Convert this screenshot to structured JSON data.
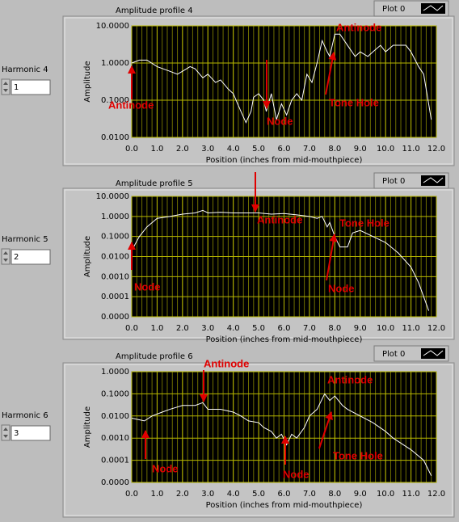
{
  "chart_data": [
    {
      "type": "line",
      "title": "Amplitude profile 4",
      "xlabel": "Position (inches from mid-mouthpiece)",
      "ylabel": "Amplitude",
      "log_y": true,
      "grid": true,
      "x": [
        0,
        0.3,
        0.6,
        1.0,
        1.5,
        1.8,
        2.0,
        2.3,
        2.5,
        2.8,
        3.0,
        3.3,
        3.5,
        3.8,
        4.0,
        4.3,
        4.5,
        4.7,
        4.8,
        5.0,
        5.2,
        5.3,
        5.5,
        5.7,
        5.9,
        6.1,
        6.3,
        6.5,
        6.7,
        6.9,
        7.1,
        7.3,
        7.5,
        7.7,
        7.8,
        8.0,
        8.2,
        8.5,
        8.8,
        9.0,
        9.3,
        9.5,
        9.8,
        10.0,
        10.3,
        10.8,
        11.0,
        11.3,
        11.5,
        11.8
      ],
      "series": [
        {
          "name": "Plot 0",
          "color": "#ffffff",
          "values": [
            1.0,
            1.2,
            1.2,
            0.8,
            0.6,
            0.5,
            0.6,
            0.8,
            0.7,
            0.4,
            0.5,
            0.3,
            0.35,
            0.2,
            0.15,
            0.05,
            0.025,
            0.05,
            0.12,
            0.15,
            0.1,
            0.05,
            0.15,
            0.03,
            0.08,
            0.04,
            0.1,
            0.15,
            0.1,
            0.5,
            0.3,
            1.0,
            4,
            2,
            1.5,
            6,
            6,
            3,
            1.5,
            2,
            1.5,
            2,
            3,
            2,
            3,
            3,
            2,
            0.8,
            0.5,
            0.03
          ]
        }
      ],
      "xlim": [
        0,
        12
      ],
      "xticks": [
        {
          "value": 0,
          "label": "0.0"
        },
        {
          "value": 1,
          "label": "1.0"
        },
        {
          "value": 2,
          "label": "2.0"
        },
        {
          "value": 3,
          "label": "3.0"
        },
        {
          "value": 4,
          "label": "4.0"
        },
        {
          "value": 5,
          "label": "5.0"
        },
        {
          "value": 6,
          "label": "6.0"
        },
        {
          "value": 7,
          "label": "7.0"
        },
        {
          "value": 8,
          "label": "8.0"
        },
        {
          "value": 9,
          "label": "9.0"
        },
        {
          "value": 10,
          "label": "10.0"
        },
        {
          "value": 11,
          "label": "11.0"
        },
        {
          "value": 12,
          "label": "12.0"
        }
      ],
      "ylim": [
        0.01,
        10
      ],
      "yticks": [
        {
          "value": 0.01,
          "label": "0.0100"
        },
        {
          "value": 0.1,
          "label": "0.1000"
        },
        {
          "value": 1,
          "label": "1.0000"
        },
        {
          "value": 10,
          "label": "10.0000"
        }
      ],
      "annotations": [
        "Antinode",
        "Node",
        "Tone Hole",
        "Antinode"
      ]
    },
    {
      "type": "line",
      "title": "Amplitude profile 5",
      "xlabel": "Position (inches from mid-mouthpiece)",
      "ylabel": "Amplitude",
      "log_y": true,
      "grid": true,
      "x": [
        0,
        0.3,
        0.6,
        1.0,
        1.5,
        2.0,
        2.5,
        2.8,
        3.0,
        3.5,
        4.0,
        5.0,
        5.5,
        6.0,
        6.5,
        7.0,
        7.3,
        7.5,
        7.7,
        7.8,
        8.0,
        8.2,
        8.5,
        8.7,
        9.0,
        9.5,
        10.0,
        10.5,
        11.0,
        11.3,
        11.5,
        11.7
      ],
      "series": [
        {
          "name": "Plot 0",
          "color": "#ffffff",
          "values": [
            0.02,
            0.1,
            0.3,
            0.8,
            1.0,
            1.3,
            1.5,
            2,
            1.5,
            1.6,
            1.5,
            1.5,
            1.3,
            1.4,
            1.2,
            1.0,
            0.8,
            1.0,
            0.3,
            0.5,
            0.1,
            0.03,
            0.03,
            0.15,
            0.2,
            0.1,
            0.05,
            0.015,
            0.003,
            0.0005,
            0.0001,
            2e-05
          ]
        }
      ],
      "xlim": [
        0,
        12
      ],
      "xticks": [
        {
          "value": 0,
          "label": "0.0"
        },
        {
          "value": 1,
          "label": "1.0"
        },
        {
          "value": 2,
          "label": "2.0"
        },
        {
          "value": 3,
          "label": "3.0"
        },
        {
          "value": 4,
          "label": "4.0"
        },
        {
          "value": 5,
          "label": "5.0"
        },
        {
          "value": 6,
          "label": "6.0"
        },
        {
          "value": 7,
          "label": "7.0"
        },
        {
          "value": 8,
          "label": "8.0"
        },
        {
          "value": 9,
          "label": "9.0"
        },
        {
          "value": 10,
          "label": "10.0"
        },
        {
          "value": 11,
          "label": "11.0"
        },
        {
          "value": 12,
          "label": "12.0"
        }
      ],
      "ylim": [
        1e-05,
        10
      ],
      "yticks": [
        {
          "value": 1e-05,
          "label": "0.0000"
        },
        {
          "value": 0.0001,
          "label": "0.0001"
        },
        {
          "value": 0.001,
          "label": "0.0010"
        },
        {
          "value": 0.01,
          "label": "0.0100"
        },
        {
          "value": 0.1,
          "label": "0.1000"
        },
        {
          "value": 1,
          "label": "1.0000"
        },
        {
          "value": 10,
          "label": "10.0000"
        }
      ],
      "annotations": [
        "Antinode",
        "Tone Hole",
        "Node",
        "Node"
      ]
    },
    {
      "type": "line",
      "title": "Amplitude profile 6",
      "xlabel": "Position (inches from mid-mouthpiece)",
      "ylabel": "Amplitude",
      "log_y": true,
      "grid": true,
      "x": [
        0,
        0.5,
        0.8,
        1.2,
        1.5,
        2.0,
        2.5,
        2.8,
        3.0,
        3.5,
        4.0,
        4.3,
        4.6,
        5.0,
        5.2,
        5.5,
        5.7,
        5.9,
        6.1,
        6.3,
        6.5,
        6.8,
        7.0,
        7.3,
        7.6,
        7.8,
        8.0,
        8.3,
        8.5,
        9.0,
        9.5,
        10.0,
        10.3,
        10.7,
        11.0,
        11.5,
        11.8
      ],
      "series": [
        {
          "name": "Plot 0",
          "color": "#ffffff",
          "values": [
            0.008,
            0.006,
            0.01,
            0.015,
            0.02,
            0.03,
            0.03,
            0.04,
            0.02,
            0.02,
            0.015,
            0.01,
            0.006,
            0.005,
            0.003,
            0.002,
            0.001,
            0.0015,
            0.0005,
            0.0015,
            0.001,
            0.003,
            0.01,
            0.02,
            0.1,
            0.05,
            0.08,
            0.03,
            0.02,
            0.01,
            0.005,
            0.002,
            0.001,
            0.0005,
            0.0003,
            0.0001,
            2e-05
          ]
        }
      ],
      "xlim": [
        0,
        12
      ],
      "xticks": [
        {
          "value": 0,
          "label": "0.0"
        },
        {
          "value": 1,
          "label": "1.0"
        },
        {
          "value": 2,
          "label": "2.0"
        },
        {
          "value": 3,
          "label": "3.0"
        },
        {
          "value": 4,
          "label": "4.0"
        },
        {
          "value": 5,
          "label": "5.0"
        },
        {
          "value": 6,
          "label": "6.0"
        },
        {
          "value": 7,
          "label": "7.0"
        },
        {
          "value": 8,
          "label": "8.0"
        },
        {
          "value": 9,
          "label": "9.0"
        },
        {
          "value": 10,
          "label": "10.0"
        },
        {
          "value": 11,
          "label": "11.0"
        },
        {
          "value": 12,
          "label": "12.0"
        }
      ],
      "ylim": [
        1e-05,
        1
      ],
      "yticks": [
        {
          "value": 1e-05,
          "label": "0.0000"
        },
        {
          "value": 0.0001,
          "label": "0.0001"
        },
        {
          "value": 0.001,
          "label": "0.0010"
        },
        {
          "value": 0.01,
          "label": "0.0100"
        },
        {
          "value": 0.1,
          "label": "0.1000"
        },
        {
          "value": 1,
          "label": "1.0000"
        }
      ],
      "annotations": [
        "Antinode",
        "Antinode",
        "Tone Hole",
        "Node",
        "Node"
      ]
    }
  ],
  "controls": [
    {
      "label": "Harmonic 4",
      "value": 1
    },
    {
      "label": "Harmonic 5",
      "value": 2
    },
    {
      "label": "Harmonic 6",
      "value": 3
    }
  ]
}
